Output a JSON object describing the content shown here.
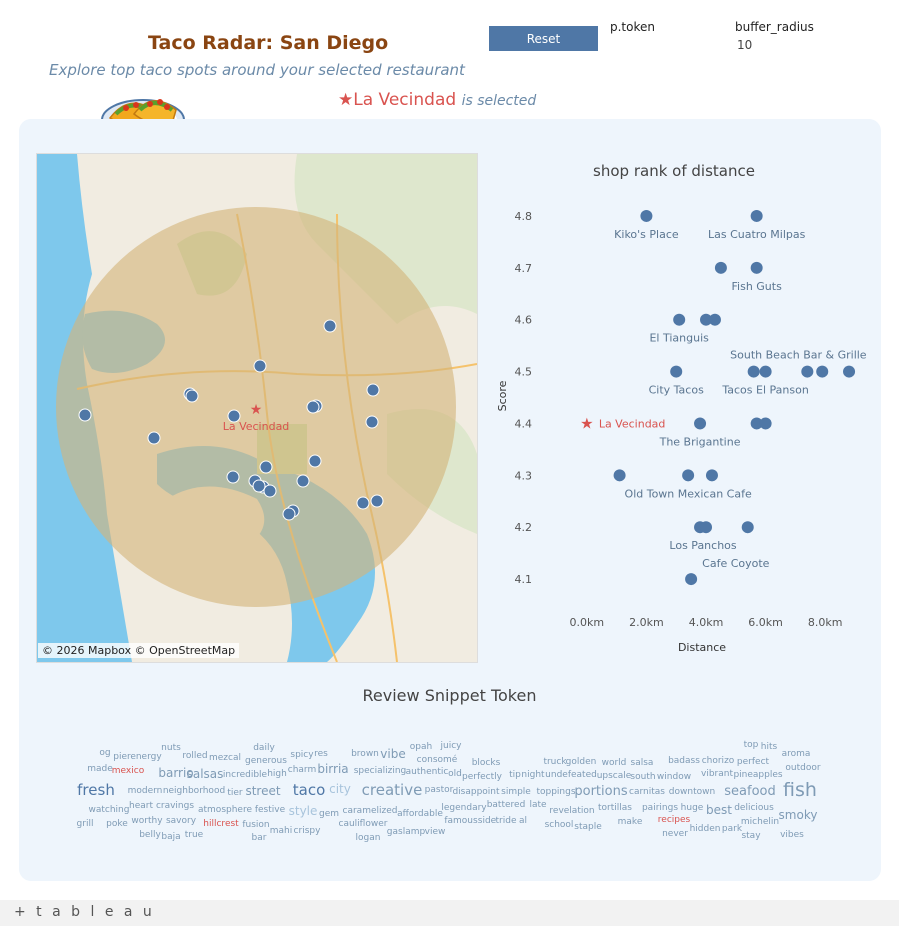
{
  "header": {
    "title": "Taco Radar: San Diego",
    "subtitle": "Explore top taco spots around your selected restaurant",
    "selected_name": "La Vecindad",
    "selected_suffix": "is selected",
    "star_glyph": "★"
  },
  "controls": {
    "reset_label": "Reset",
    "ptoken_label": "p.token",
    "buffer_label": "buffer_radius",
    "buffer_value": "10"
  },
  "map": {
    "credit": "© 2026 Mapbox © OpenStreetMap",
    "selected_label": "La Vecindad",
    "buffer_color": "#d4b47a",
    "point_color": "#4f77a6"
  },
  "chart_data": {
    "type": "scatter",
    "title": "shop rank of distance",
    "xlabel": "Distance",
    "ylabel": "Score",
    "xlim": [
      -0.9,
      9.0
    ],
    "ylim": [
      4.05,
      4.85
    ],
    "x_ticks": [
      "0.0km",
      "2.0km",
      "4.0km",
      "6.0km",
      "8.0km"
    ],
    "x_tick_values": [
      0,
      2,
      4,
      6,
      8
    ],
    "y_ticks": [
      "4.1",
      "4.2",
      "4.3",
      "4.4",
      "4.5",
      "4.6",
      "4.7",
      "4.8"
    ],
    "y_tick_values": [
      4.1,
      4.2,
      4.3,
      4.4,
      4.5,
      4.6,
      4.7,
      4.8
    ],
    "point_color": "#4f77a6",
    "selected_color": "#d9534f",
    "points": [
      {
        "x": 2.0,
        "y": 4.8
      },
      {
        "x": 5.7,
        "y": 4.8
      },
      {
        "x": 4.5,
        "y": 4.7
      },
      {
        "x": 5.7,
        "y": 4.7
      },
      {
        "x": 3.1,
        "y": 4.6
      },
      {
        "x": 4.0,
        "y": 4.6
      },
      {
        "x": 4.3,
        "y": 4.6
      },
      {
        "x": 3.0,
        "y": 4.5
      },
      {
        "x": 5.6,
        "y": 4.5
      },
      {
        "x": 6.0,
        "y": 4.5
      },
      {
        "x": 7.4,
        "y": 4.5
      },
      {
        "x": 7.9,
        "y": 4.5
      },
      {
        "x": 8.8,
        "y": 4.5
      },
      {
        "x": 3.8,
        "y": 4.4
      },
      {
        "x": 5.7,
        "y": 4.4
      },
      {
        "x": 6.0,
        "y": 4.4
      },
      {
        "x": 1.1,
        "y": 4.3
      },
      {
        "x": 3.4,
        "y": 4.3
      },
      {
        "x": 4.2,
        "y": 4.3
      },
      {
        "x": 3.8,
        "y": 4.2
      },
      {
        "x": 4.0,
        "y": 4.2
      },
      {
        "x": 5.4,
        "y": 4.2
      },
      {
        "x": 3.5,
        "y": 4.1
      }
    ],
    "selected": {
      "label": "La Vecindad",
      "x": 0,
      "y": 4.4
    },
    "labels": [
      {
        "text": "Kiko's Place",
        "x": 2.0,
        "y": 4.8
      },
      {
        "text": "Las Cuatro Milpas",
        "x": 5.7,
        "y": 4.8
      },
      {
        "text": "Fish Guts",
        "x": 5.7,
        "y": 4.7
      },
      {
        "text": "El Tianguis",
        "x": 3.1,
        "y": 4.6
      },
      {
        "text": "South Beach Bar & Grille",
        "x": 7.1,
        "y": 4.5
      },
      {
        "text": "City Tacos",
        "x": 3.0,
        "y": 4.5
      },
      {
        "text": "Tacos El Panson",
        "x": 6.0,
        "y": 4.5
      },
      {
        "text": "The Brigantine",
        "x": 3.8,
        "y": 4.4
      },
      {
        "text": "Old Town Mexican Cafe",
        "x": 3.4,
        "y": 4.3
      },
      {
        "text": "Los Panchos",
        "x": 3.9,
        "y": 4.2
      },
      {
        "text": "Cafe Coyote",
        "x": 5.0,
        "y": 4.2
      }
    ]
  },
  "wordcloud": {
    "title": "Review Snippet Token",
    "words": [
      {
        "t": "og",
        "x": 105,
        "y": 755,
        "s": 9,
        "c": "#7f9bb5"
      },
      {
        "t": "pier",
        "x": 122,
        "y": 759,
        "s": 9,
        "c": "#7f9bb5"
      },
      {
        "t": "energy",
        "x": 146,
        "y": 759,
        "s": 9,
        "c": "#7f9bb5"
      },
      {
        "t": "nuts",
        "x": 171,
        "y": 750,
        "s": 9,
        "c": "#7f9bb5"
      },
      {
        "t": "rolled",
        "x": 195,
        "y": 758,
        "s": 9,
        "c": "#7f9bb5"
      },
      {
        "t": "mezcal",
        "x": 225,
        "y": 760,
        "s": 9,
        "c": "#7f9bb5"
      },
      {
        "t": "daily",
        "x": 264,
        "y": 750,
        "s": 9,
        "c": "#7f9bb5"
      },
      {
        "t": "generous",
        "x": 266,
        "y": 763,
        "s": 9,
        "c": "#7f9bb5"
      },
      {
        "t": "spicy",
        "x": 302,
        "y": 757,
        "s": 9,
        "c": "#7f9bb5"
      },
      {
        "t": "res",
        "x": 321,
        "y": 756,
        "s": 9,
        "c": "#7f9bb5"
      },
      {
        "t": "brown",
        "x": 365,
        "y": 756,
        "s": 9,
        "c": "#7f9bb5"
      },
      {
        "t": "vibe",
        "x": 393,
        "y": 758,
        "s": 12,
        "c": "#7f9bb5"
      },
      {
        "t": "opah",
        "x": 421,
        "y": 749,
        "s": 9,
        "c": "#7f9bb5"
      },
      {
        "t": "juicy",
        "x": 451,
        "y": 748,
        "s": 9,
        "c": "#7f9bb5"
      },
      {
        "t": "consomé",
        "x": 437,
        "y": 762,
        "s": 9,
        "c": "#7f9bb5"
      },
      {
        "t": "blocks",
        "x": 486,
        "y": 765,
        "s": 9,
        "c": "#7f9bb5"
      },
      {
        "t": "truck",
        "x": 555,
        "y": 764,
        "s": 9,
        "c": "#7f9bb5"
      },
      {
        "t": "golden",
        "x": 581,
        "y": 764,
        "s": 9,
        "c": "#7f9bb5"
      },
      {
        "t": "world",
        "x": 614,
        "y": 765,
        "s": 9,
        "c": "#7f9bb5"
      },
      {
        "t": "salsa",
        "x": 642,
        "y": 765,
        "s": 9,
        "c": "#7f9bb5"
      },
      {
        "t": "badass",
        "x": 684,
        "y": 763,
        "s": 9,
        "c": "#7f9bb5"
      },
      {
        "t": "chorizo",
        "x": 718,
        "y": 763,
        "s": 9,
        "c": "#7f9bb5"
      },
      {
        "t": "perfect",
        "x": 753,
        "y": 764,
        "s": 9,
        "c": "#7f9bb5"
      },
      {
        "t": "top",
        "x": 751,
        "y": 747,
        "s": 9,
        "c": "#7f9bb5"
      },
      {
        "t": "hits",
        "x": 769,
        "y": 749,
        "s": 9,
        "c": "#7f9bb5"
      },
      {
        "t": "aroma",
        "x": 796,
        "y": 756,
        "s": 9,
        "c": "#7f9bb5"
      },
      {
        "t": "made",
        "x": 100,
        "y": 771,
        "s": 9,
        "c": "#7f9bb5"
      },
      {
        "t": "mexico",
        "x": 128,
        "y": 773,
        "s": 9,
        "c": "#d9534f"
      },
      {
        "t": "barrio",
        "x": 176,
        "y": 777,
        "s": 12,
        "c": "#7f9bb5"
      },
      {
        "t": "salsas",
        "x": 205,
        "y": 778,
        "s": 12,
        "c": "#7f9bb5"
      },
      {
        "t": "incredible",
        "x": 245,
        "y": 777,
        "s": 9,
        "c": "#7f9bb5"
      },
      {
        "t": "high",
        "x": 277,
        "y": 776,
        "s": 9,
        "c": "#7f9bb5"
      },
      {
        "t": "charm",
        "x": 302,
        "y": 772,
        "s": 9,
        "c": "#7f9bb5"
      },
      {
        "t": "birria",
        "x": 333,
        "y": 773,
        "s": 12,
        "c": "#7f9bb5"
      },
      {
        "t": "specializing",
        "x": 380,
        "y": 773,
        "s": 9,
        "c": "#7f9bb5"
      },
      {
        "t": "authentic",
        "x": 427,
        "y": 774,
        "s": 9,
        "c": "#7f9bb5"
      },
      {
        "t": "old",
        "x": 455,
        "y": 776,
        "s": 9,
        "c": "#7f9bb5"
      },
      {
        "t": "perfectly",
        "x": 482,
        "y": 779,
        "s": 9,
        "c": "#7f9bb5"
      },
      {
        "t": "tip",
        "x": 515,
        "y": 777,
        "s": 9,
        "c": "#7f9bb5"
      },
      {
        "t": "night",
        "x": 533,
        "y": 777,
        "s": 9,
        "c": "#7f9bb5"
      },
      {
        "t": "undefeated",
        "x": 571,
        "y": 777,
        "s": 9,
        "c": "#7f9bb5"
      },
      {
        "t": "upscale",
        "x": 614,
        "y": 778,
        "s": 9,
        "c": "#7f9bb5"
      },
      {
        "t": "south",
        "x": 643,
        "y": 779,
        "s": 9,
        "c": "#7f9bb5"
      },
      {
        "t": "window",
        "x": 674,
        "y": 779,
        "s": 9,
        "c": "#7f9bb5"
      },
      {
        "t": "vibrant",
        "x": 717,
        "y": 776,
        "s": 9,
        "c": "#7f9bb5"
      },
      {
        "t": "pineapples",
        "x": 758,
        "y": 777,
        "s": 9,
        "c": "#7f9bb5"
      },
      {
        "t": "outdoor",
        "x": 803,
        "y": 770,
        "s": 9,
        "c": "#7f9bb5"
      },
      {
        "t": "fresh",
        "x": 96,
        "y": 795,
        "s": 15,
        "c": "#4f77a6"
      },
      {
        "t": "modern",
        "x": 145,
        "y": 793,
        "s": 9,
        "c": "#7f9bb5"
      },
      {
        "t": "neighborhood",
        "x": 194,
        "y": 793,
        "s": 9,
        "c": "#7f9bb5"
      },
      {
        "t": "tier",
        "x": 235,
        "y": 795,
        "s": 9,
        "c": "#7f9bb5"
      },
      {
        "t": "street",
        "x": 263,
        "y": 795,
        "s": 12,
        "c": "#7f9bb5"
      },
      {
        "t": "taco",
        "x": 309,
        "y": 795,
        "s": 15,
        "c": "#4f77a6"
      },
      {
        "t": "city",
        "x": 340,
        "y": 793,
        "s": 12,
        "c": "#a8c4dc"
      },
      {
        "t": "creative",
        "x": 392,
        "y": 795,
        "s": 15,
        "c": "#7f9bb5"
      },
      {
        "t": "pastor",
        "x": 439,
        "y": 792,
        "s": 9,
        "c": "#7f9bb5"
      },
      {
        "t": "disappoint",
        "x": 476,
        "y": 794,
        "s": 9,
        "c": "#7f9bb5"
      },
      {
        "t": "simple",
        "x": 516,
        "y": 794,
        "s": 9,
        "c": "#7f9bb5"
      },
      {
        "t": "toppings",
        "x": 556,
        "y": 794,
        "s": 9,
        "c": "#7f9bb5"
      },
      {
        "t": "portions",
        "x": 601,
        "y": 795,
        "s": 13,
        "c": "#7f9bb5"
      },
      {
        "t": "carnitas",
        "x": 647,
        "y": 794,
        "s": 9,
        "c": "#7f9bb5"
      },
      {
        "t": "downtown",
        "x": 692,
        "y": 794,
        "s": 9,
        "c": "#7f9bb5"
      },
      {
        "t": "seafood",
        "x": 750,
        "y": 795,
        "s": 13,
        "c": "#7f9bb5"
      },
      {
        "t": "fish",
        "x": 800,
        "y": 796,
        "s": 19,
        "c": "#7f9bb5"
      },
      {
        "t": "watching",
        "x": 109,
        "y": 812,
        "s": 9,
        "c": "#7f9bb5"
      },
      {
        "t": "heart",
        "x": 141,
        "y": 808,
        "s": 9,
        "c": "#7f9bb5"
      },
      {
        "t": "cravings",
        "x": 175,
        "y": 808,
        "s": 9,
        "c": "#7f9bb5"
      },
      {
        "t": "atmosphere",
        "x": 225,
        "y": 812,
        "s": 9,
        "c": "#7f9bb5"
      },
      {
        "t": "festive",
        "x": 270,
        "y": 812,
        "s": 9,
        "c": "#7f9bb5"
      },
      {
        "t": "style",
        "x": 303,
        "y": 815,
        "s": 12,
        "c": "#a8c4dc"
      },
      {
        "t": "gem",
        "x": 329,
        "y": 816,
        "s": 9,
        "c": "#7f9bb5"
      },
      {
        "t": "caramelized",
        "x": 370,
        "y": 813,
        "s": 9,
        "c": "#7f9bb5"
      },
      {
        "t": "affordable",
        "x": 420,
        "y": 816,
        "s": 9,
        "c": "#7f9bb5"
      },
      {
        "t": "legendary",
        "x": 464,
        "y": 810,
        "s": 9,
        "c": "#7f9bb5"
      },
      {
        "t": "battered",
        "x": 506,
        "y": 807,
        "s": 9,
        "c": "#7f9bb5"
      },
      {
        "t": "late",
        "x": 538,
        "y": 807,
        "s": 9,
        "c": "#7f9bb5"
      },
      {
        "t": "revelation",
        "x": 572,
        "y": 813,
        "s": 9,
        "c": "#7f9bb5"
      },
      {
        "t": "tortillas",
        "x": 615,
        "y": 810,
        "s": 9,
        "c": "#7f9bb5"
      },
      {
        "t": "pairings",
        "x": 660,
        "y": 810,
        "s": 9,
        "c": "#7f9bb5"
      },
      {
        "t": "huge",
        "x": 692,
        "y": 810,
        "s": 9,
        "c": "#7f9bb5"
      },
      {
        "t": "best",
        "x": 719,
        "y": 814,
        "s": 12,
        "c": "#7f9bb5"
      },
      {
        "t": "delicious",
        "x": 754,
        "y": 810,
        "s": 9,
        "c": "#7f9bb5"
      },
      {
        "t": "smoky",
        "x": 798,
        "y": 819,
        "s": 12,
        "c": "#7f9bb5"
      },
      {
        "t": "grill",
        "x": 85,
        "y": 826,
        "s": 9,
        "c": "#7f9bb5"
      },
      {
        "t": "poke",
        "x": 117,
        "y": 826,
        "s": 9,
        "c": "#7f9bb5"
      },
      {
        "t": "worthy",
        "x": 147,
        "y": 823,
        "s": 9,
        "c": "#7f9bb5"
      },
      {
        "t": "savory",
        "x": 181,
        "y": 823,
        "s": 9,
        "c": "#7f9bb5"
      },
      {
        "t": "hillcrest",
        "x": 221,
        "y": 826,
        "s": 9,
        "c": "#d9534f"
      },
      {
        "t": "fusion",
        "x": 256,
        "y": 827,
        "s": 9,
        "c": "#7f9bb5"
      },
      {
        "t": "cauliflower",
        "x": 363,
        "y": 826,
        "s": 9,
        "c": "#7f9bb5"
      },
      {
        "t": "famous",
        "x": 461,
        "y": 823,
        "s": 9,
        "c": "#7f9bb5"
      },
      {
        "t": "side",
        "x": 487,
        "y": 823,
        "s": 9,
        "c": "#7f9bb5"
      },
      {
        "t": "tride",
        "x": 506,
        "y": 823,
        "s": 9,
        "c": "#7f9bb5"
      },
      {
        "t": "al",
        "x": 523,
        "y": 823,
        "s": 9,
        "c": "#7f9bb5"
      },
      {
        "t": "school",
        "x": 559,
        "y": 827,
        "s": 9,
        "c": "#7f9bb5"
      },
      {
        "t": "staple",
        "x": 588,
        "y": 829,
        "s": 9,
        "c": "#7f9bb5"
      },
      {
        "t": "make",
        "x": 630,
        "y": 824,
        "s": 9,
        "c": "#7f9bb5"
      },
      {
        "t": "recipes",
        "x": 674,
        "y": 822,
        "s": 9,
        "c": "#d9534f"
      },
      {
        "t": "michelin",
        "x": 760,
        "y": 824,
        "s": 9,
        "c": "#7f9bb5"
      },
      {
        "t": "belly",
        "x": 150,
        "y": 837,
        "s": 9,
        "c": "#7f9bb5"
      },
      {
        "t": "baja",
        "x": 171,
        "y": 839,
        "s": 9,
        "c": "#7f9bb5"
      },
      {
        "t": "true",
        "x": 194,
        "y": 837,
        "s": 9,
        "c": "#7f9bb5"
      },
      {
        "t": "bar",
        "x": 259,
        "y": 840,
        "s": 9,
        "c": "#7f9bb5"
      },
      {
        "t": "mahi",
        "x": 281,
        "y": 833,
        "s": 9,
        "c": "#7f9bb5"
      },
      {
        "t": "crispy",
        "x": 307,
        "y": 833,
        "s": 9,
        "c": "#7f9bb5"
      },
      {
        "t": "logan",
        "x": 368,
        "y": 840,
        "s": 9,
        "c": "#7f9bb5"
      },
      {
        "t": "gaslamp",
        "x": 406,
        "y": 834,
        "s": 9,
        "c": "#7f9bb5"
      },
      {
        "t": "view",
        "x": 435,
        "y": 834,
        "s": 9,
        "c": "#7f9bb5"
      },
      {
        "t": "never",
        "x": 675,
        "y": 836,
        "s": 9,
        "c": "#7f9bb5"
      },
      {
        "t": "hidden",
        "x": 705,
        "y": 831,
        "s": 9,
        "c": "#7f9bb5"
      },
      {
        "t": "park",
        "x": 732,
        "y": 831,
        "s": 9,
        "c": "#7f9bb5"
      },
      {
        "t": "stay",
        "x": 751,
        "y": 838,
        "s": 9,
        "c": "#7f9bb5"
      },
      {
        "t": "vibes",
        "x": 792,
        "y": 837,
        "s": 9,
        "c": "#7f9bb5"
      }
    ]
  },
  "footer": {
    "logo": "+ t a b l e a u"
  }
}
